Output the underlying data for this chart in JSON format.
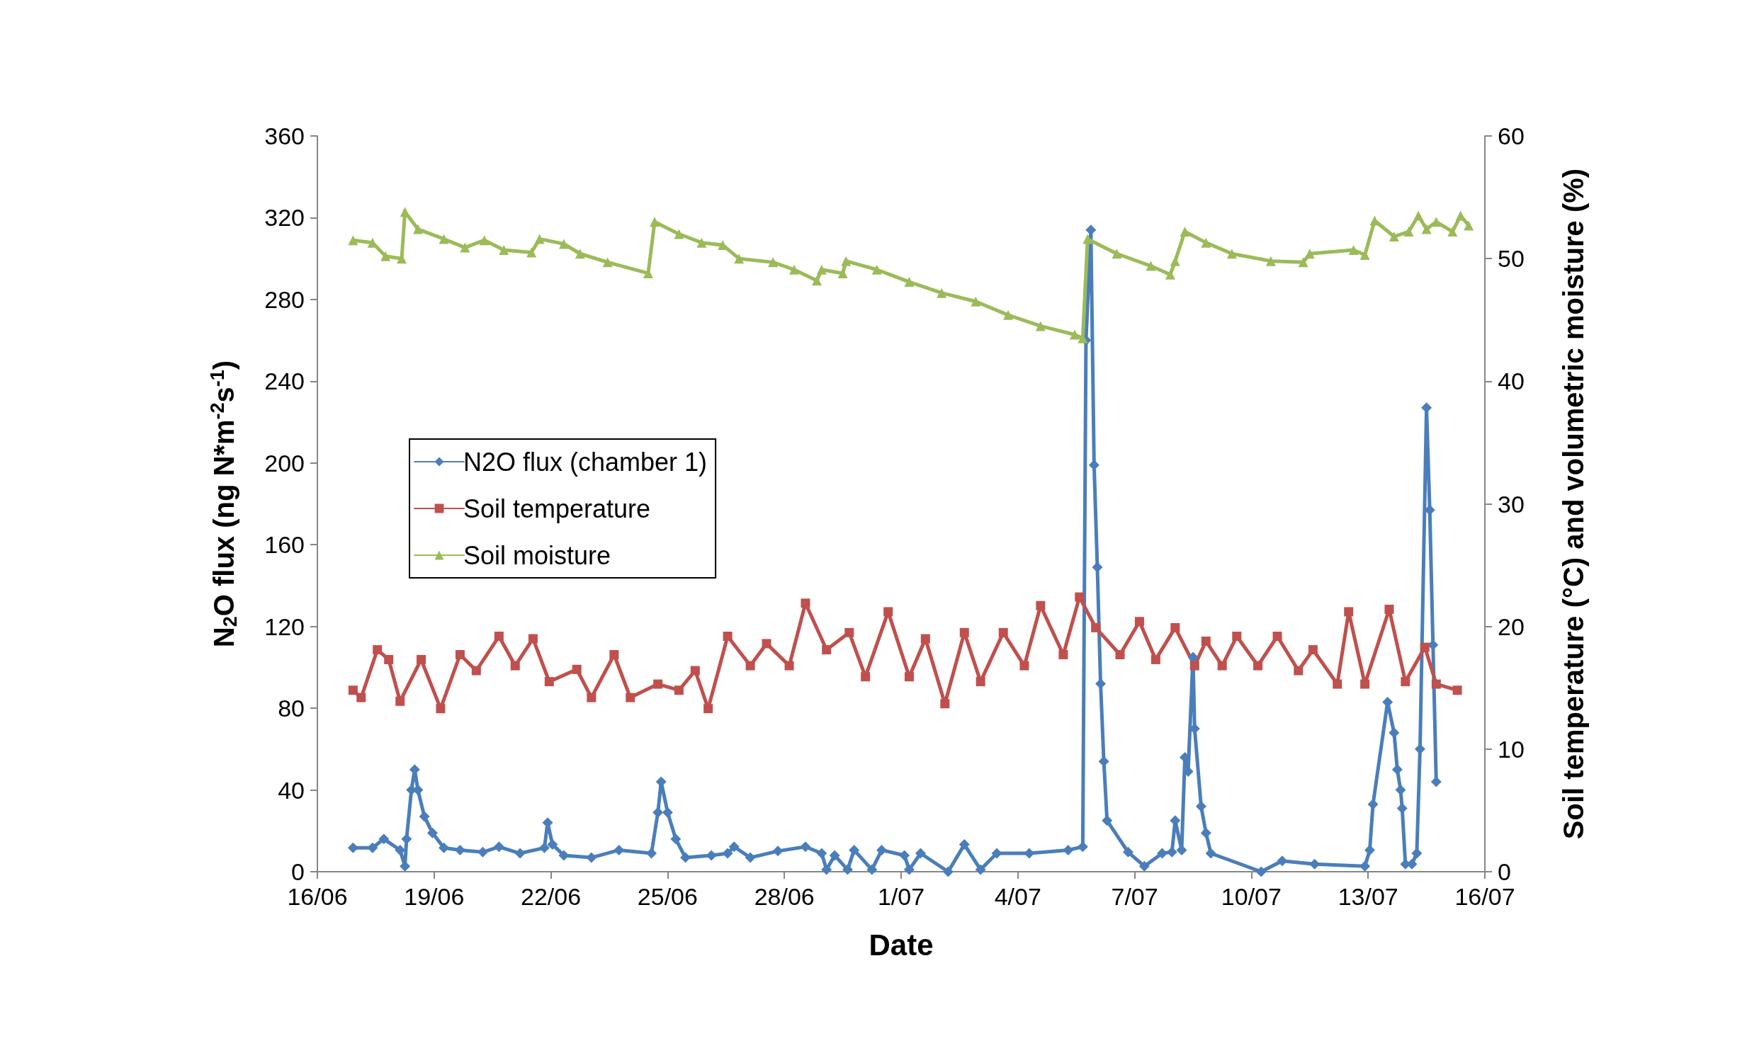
{
  "chart_data": {
    "type": "line",
    "xlabel": "Date",
    "ylabel": "N$_{2}$O flux (ng N*m$^{-2}$s$^{-1}$)",
    "y2label": "Soil temperature (°C) and volumetric moisture (%)",
    "xlim": [
      "--06-16",
      "--07-16"
    ],
    "xticks": [
      {
        "value": "--06-16",
        "label": "16/06"
      },
      {
        "value": "--06-19",
        "label": "19/06"
      },
      {
        "value": "--06-22",
        "label": "22/06"
      },
      {
        "value": "--06-25",
        "label": "25/06"
      },
      {
        "value": "--06-28",
        "label": "28/06"
      },
      {
        "value": "--07-01",
        "label": "1/07"
      },
      {
        "value": "--07-04",
        "label": "4/07"
      },
      {
        "value": "--07-07",
        "label": "7/07"
      },
      {
        "value": "--07-10",
        "label": "10/07"
      },
      {
        "value": "--07-13",
        "label": "13/07"
      },
      {
        "value": "--07-16",
        "label": "16/07"
      }
    ],
    "ylim": [
      0,
      360
    ],
    "yticks": [
      0,
      40,
      80,
      120,
      160,
      200,
      240,
      280,
      320,
      360
    ],
    "y2lim": [
      0,
      60
    ],
    "y2ticks": [
      0,
      10,
      20,
      30,
      40,
      50,
      60
    ],
    "grid": false,
    "legend": "left",
    "line_style": "solid",
    "series": [
      {
        "name": "N2O flux (chamber 1)",
        "color": "#4a7ebb",
        "marker": "diamond",
        "x": [
          "--06-16T22:00",
          "--06-17T10:00",
          "--06-17T17:00",
          "--06-18T03:00",
          "--06-18T06:00",
          "--06-18T07:00",
          "--06-18T10:00",
          "--06-18T12:00",
          "--06-18T14:00",
          "--06-18T18:00",
          "--06-18T23:00",
          "--06-19T06:00",
          "--06-19T16:00",
          "--06-20T06:00",
          "--06-20T16:00",
          "--06-21T05:00",
          "--06-21T20:00",
          "--06-21T22:00",
          "--06-22T01:00",
          "--06-22T08:00",
          "--06-23T01:00",
          "--06-23T18:00",
          "--06-24T14:00",
          "--06-24T18:00",
          "--06-24T20:00",
          "--06-25T00:00",
          "--06-25T05:00",
          "--06-25T11:00",
          "--06-26T03:00",
          "--06-26T13:00",
          "--06-26T17:00",
          "--06-27T03:00",
          "--06-27T20:00",
          "--06-28T13:00",
          "--06-28T23:00",
          "--06-29T02:00",
          "--06-29T07:00",
          "--06-29T15:00",
          "--06-29T19:00",
          "--06-30T06:00",
          "--06-30T12:00",
          "--07-01T02:00",
          "--07-01T05:00",
          "--07-01T12:00",
          "--07-02T05:00",
          "--07-02T15:00",
          "--07-03T01:00",
          "--07-03T11:00",
          "--07-04T07:00",
          "--07-05T07:00",
          "--07-05T16:00",
          "--07-05T18:00",
          "--07-05T21:00",
          "--07-05T23:00",
          "--07-06T01:00",
          "--07-06T03:00",
          "--07-06T05:00",
          "--07-06T07:00",
          "--07-06T20:00",
          "--07-07T06:00",
          "--07-07T17:00",
          "--07-07T23:00",
          "--07-08T01:00",
          "--07-08T05:00",
          "--07-08T07:00",
          "--07-08T09:00",
          "--07-08T12:00",
          "--07-08T13:00",
          "--07-08T17:00",
          "--07-08T20:00",
          "--07-08T23:00",
          "--07-10T06:00",
          "--07-10T19:00",
          "--07-11T15:00",
          "--07-12T22:00",
          "--07-13T01:00",
          "--07-13T03:00",
          "--07-13T12:00",
          "--07-13T16:00",
          "--07-13T18:00",
          "--07-13T20:00",
          "--07-13T21:00",
          "--07-13T23:00",
          "--07-14T03:00",
          "--07-14T06:00",
          "--07-14T08:00",
          "--07-14T12:00",
          "--07-14T14:00",
          "--07-14T16:00",
          "--07-14T18:00"
        ],
        "values": [
          11.7,
          11.7,
          16,
          10.6,
          2.7,
          16,
          40,
          50,
          40,
          27,
          19,
          11.7,
          10.6,
          9.6,
          12.2,
          9,
          11.7,
          24,
          13.3,
          8,
          6.9,
          10.6,
          9,
          29,
          44,
          29,
          16,
          6.9,
          8,
          9,
          12.2,
          6.9,
          10.1,
          12.2,
          9,
          1,
          8,
          1,
          10.6,
          1,
          10.6,
          8,
          1,
          9,
          0,
          13.3,
          1,
          9,
          9,
          10.6,
          12.2,
          260,
          314,
          199,
          149,
          92,
          54,
          25,
          9.6,
          2.7,
          9,
          9.6,
          25,
          10.6,
          56,
          49,
          105,
          70,
          32,
          19,
          9,
          0,
          5.3,
          3.7,
          2.7,
          10.6,
          33,
          83,
          68,
          50,
          40,
          31,
          3.7,
          3.7,
          9,
          60,
          227,
          177,
          111,
          44
        ]
      },
      {
        "name": "Soil temperature",
        "color": "#c0504d",
        "marker": "square",
        "axis": "y2",
        "x": [
          "--06-16T22:00",
          "--06-17T03:00",
          "--06-17T13:00",
          "--06-17T20:00",
          "--06-18T03:00",
          "--06-18T16:00",
          "--06-19T04:00",
          "--06-19T16:00",
          "--06-20T02:00",
          "--06-20T16:00",
          "--06-21T02:00",
          "--06-21T13:00",
          "--06-21T23:00",
          "--06-22T16:00",
          "--06-23T01:00",
          "--06-23T15:00",
          "--06-24T01:00",
          "--06-24T18:00",
          "--06-25T07:00",
          "--06-25T17:00",
          "--06-26T01:00",
          "--06-26T13:00",
          "--06-27T03:00",
          "--06-27T13:00",
          "--06-28T03:00",
          "--06-28T13:00",
          "--06-29T02:00",
          "--06-29T16:00",
          "--06-30T02:00",
          "--06-30T16:00",
          "--07-01T05:00",
          "--07-01T15:00",
          "--07-02T03:00",
          "--07-02T15:00",
          "--07-03T01:00",
          "--07-03T15:00",
          "--07-04T04:00",
          "--07-04T14:00",
          "--07-05T04:00",
          "--07-05T14:00",
          "--07-06T00:00",
          "--07-06T15:00",
          "--07-07T03:00",
          "--07-07T13:00",
          "--07-08T01:00",
          "--07-08T13:00",
          "--07-08T20:00",
          "--07-09T06:00",
          "--07-09T15:00",
          "--07-10T04:00",
          "--07-10T16:00",
          "--07-11T05:00",
          "--07-11T14:00",
          "--07-12T05:00",
          "--07-12T12:00",
          "--07-12T22:00",
          "--07-13T13:00",
          "--07-13T23:00",
          "--07-14T11:00",
          "--07-14T18:00",
          "--07-15T07:00"
        ],
        "values": [
          14.8,
          14.2,
          18.1,
          17.3,
          13.9,
          17.3,
          13.3,
          17.7,
          16.4,
          19.2,
          16.8,
          19,
          15.5,
          16.5,
          14.2,
          17.7,
          14.2,
          15.3,
          14.8,
          16.4,
          13.3,
          19.2,
          16.8,
          18.6,
          16.8,
          21.9,
          18.1,
          19.5,
          15.9,
          21.2,
          15.9,
          19,
          13.7,
          19.5,
          15.5,
          19.5,
          16.8,
          21.7,
          17.7,
          22.4,
          19.9,
          17.7,
          20.4,
          17.3,
          19.9,
          16.8,
          18.8,
          16.8,
          19.2,
          16.8,
          19.2,
          16.4,
          18.1,
          15.3,
          21.2,
          15.3,
          21.4,
          15.5,
          18.3,
          15.3,
          14.8
        ]
      },
      {
        "name": "Soil moisture",
        "color": "#9bbb59",
        "marker": "triangle",
        "axis": "y2",
        "x": [
          "--06-16T22:00",
          "--06-17T10:00",
          "--06-17T18:00",
          "--06-18T04:00",
          "--06-18T06:00",
          "--06-18T14:00",
          "--06-19T06:00",
          "--06-19T19:00",
          "--06-20T07:00",
          "--06-20T19:00",
          "--06-21T12:00",
          "--06-21T17:00",
          "--06-22T08:00",
          "--06-22T18:00",
          "--06-23T11:00",
          "--06-24T12:00",
          "--06-24T16:00",
          "--06-25T07:00",
          "--06-25T21:00",
          "--06-26T10:00",
          "--06-26T20:00",
          "--06-27T17:00",
          "--06-28T06:00",
          "--06-28T20:00",
          "--06-28T23:00",
          "--06-29T12:00",
          "--06-29T14:00",
          "--06-30T09:00",
          "--07-01T05:00",
          "--07-02T01:00",
          "--07-02T22:00",
          "--07-03T18:00",
          "--07-04T14:00",
          "--07-05T11:00",
          "--07-05T16:00",
          "--07-05T19:00",
          "--07-06T13:00",
          "--07-07T10:00",
          "--07-07T22:00",
          "--07-08T01:00",
          "--07-08T07:00",
          "--07-08T20:00",
          "--07-09T12:00",
          "--07-10T12:00",
          "--07-11T08:00",
          "--07-11T12:00",
          "--07-12T15:00",
          "--07-12T22:00",
          "--07-13T04:00",
          "--07-13T16:00",
          "--07-14T01:00",
          "--07-14T07:00",
          "--07-14T12:00",
          "--07-14T18:00",
          "--07-15T04:00",
          "--07-15T09:00",
          "--07-15T14:00"
        ],
        "values": [
          51.5,
          51.3,
          50.2,
          50,
          53.8,
          52.4,
          51.6,
          50.9,
          51.5,
          50.7,
          50.5,
          51.6,
          51.2,
          50.4,
          49.7,
          48.8,
          53,
          52,
          51.3,
          51.1,
          50,
          49.7,
          49.1,
          48.2,
          49.1,
          48.8,
          49.8,
          49.1,
          48.1,
          47.2,
          46.5,
          45.4,
          44.5,
          43.8,
          43.5,
          51.6,
          50.4,
          49.4,
          48.7,
          49.8,
          52.2,
          51.3,
          50.4,
          49.8,
          49.7,
          50.4,
          50.7,
          50.3,
          53.1,
          51.8,
          52.2,
          53.5,
          52.4,
          53,
          52.2,
          53.5,
          52.7
        ]
      }
    ]
  }
}
